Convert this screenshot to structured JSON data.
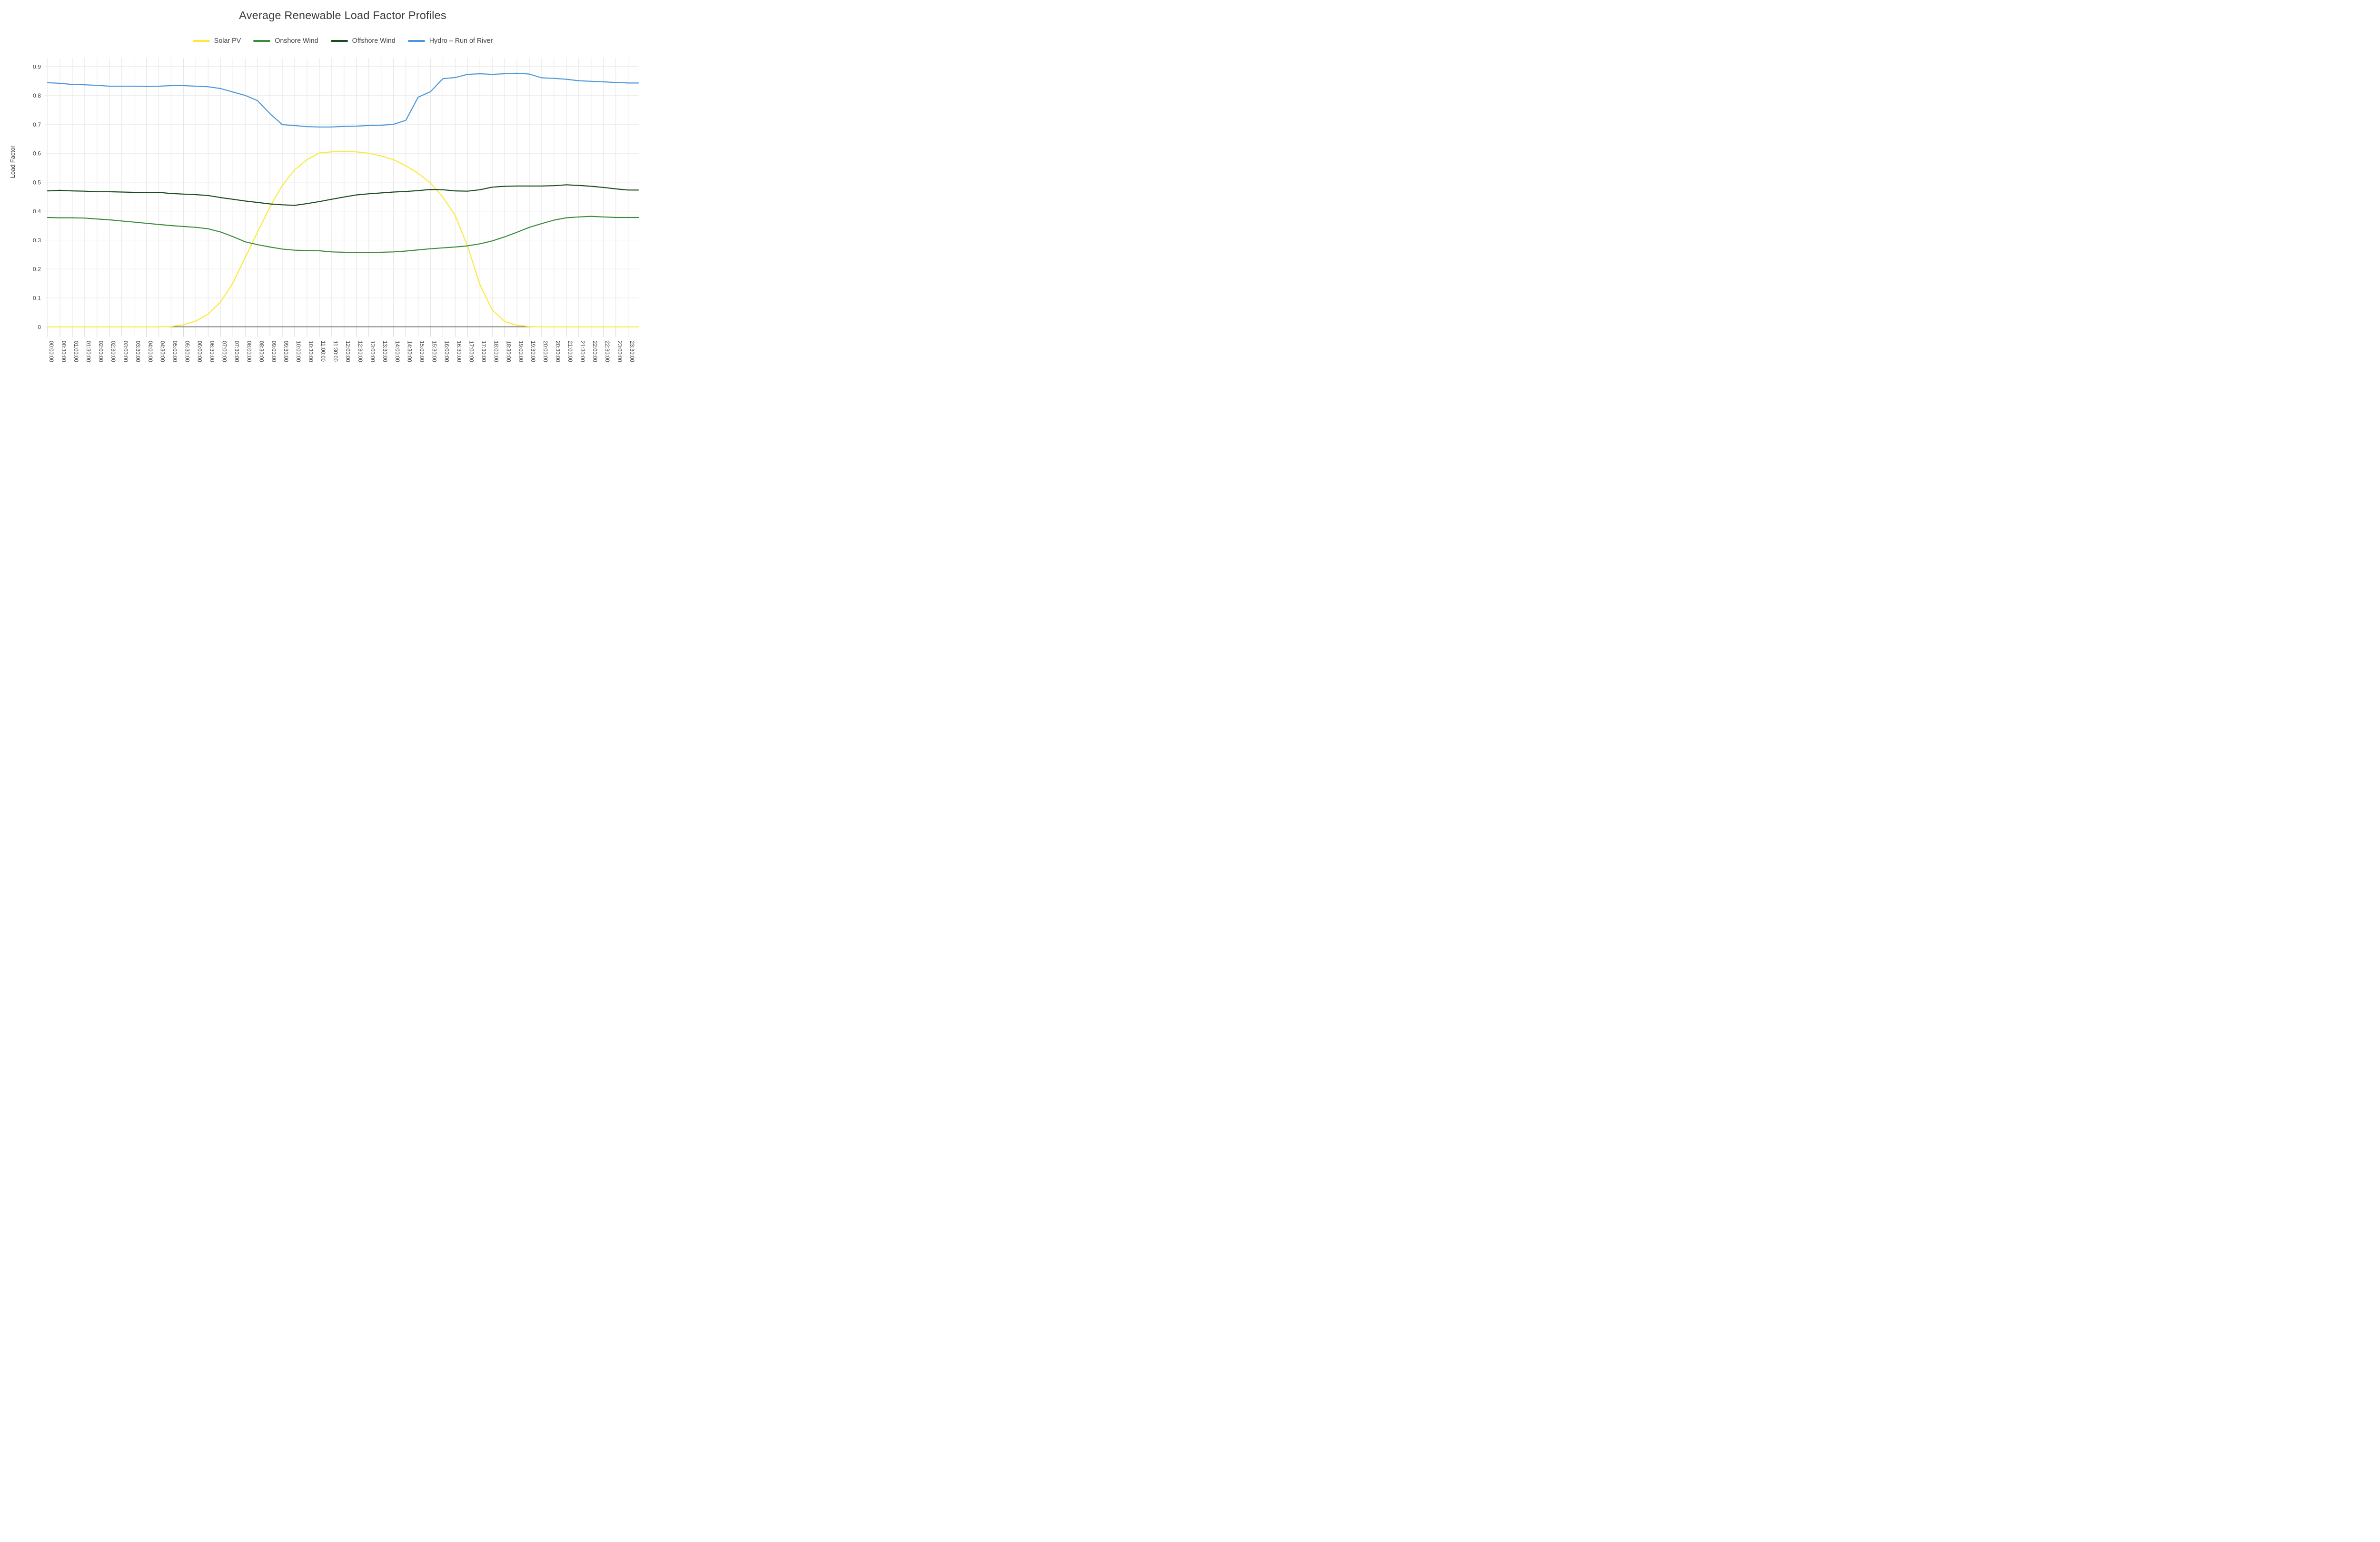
{
  "title": "Average Renewable Load Factor Profiles",
  "y_axis_title": "Load Factor",
  "chart_data": {
    "type": "line",
    "title": "Average Renewable Load Factor Profiles",
    "xlabel": "",
    "ylabel": "Load Factor",
    "legend_position": "top",
    "grid": true,
    "ylim": [
      0,
      0.93
    ],
    "y_ticks": [
      {
        "value": 0.0,
        "label": "0"
      },
      {
        "value": 0.1,
        "label": "0.1"
      },
      {
        "value": 0.2,
        "label": "0.2"
      },
      {
        "value": 0.3,
        "label": "0.3"
      },
      {
        "value": 0.4,
        "label": "0.4"
      },
      {
        "value": 0.5,
        "label": "0.5"
      },
      {
        "value": 0.6,
        "label": "0.6"
      },
      {
        "value": 0.7,
        "label": "0.7"
      },
      {
        "value": 0.8,
        "label": "0.8"
      },
      {
        "value": 0.9,
        "label": "0.9"
      }
    ],
    "categories": [
      "00:00:00",
      "00:30:00",
      "01:00:00",
      "01:30:00",
      "02:00:00",
      "02:30:00",
      "03:00:00",
      "03:30:00",
      "04:00:00",
      "04:30:00",
      "05:00:00",
      "05:30:00",
      "06:00:00",
      "06:30:00",
      "07:00:00",
      "07:30:00",
      "08:00:00",
      "08:30:00",
      "09:00:00",
      "09:30:00",
      "10:00:00",
      "10:30:00",
      "11:00:00",
      "11:30:00",
      "12:00:00",
      "12:30:00",
      "13:00:00",
      "13:30:00",
      "14:00:00",
      "14:30:00",
      "15:00:00",
      "15:30:00",
      "16:00:00",
      "16:30:00",
      "17:00:00",
      "17:30:00",
      "18:00:00",
      "18:30:00",
      "19:00:00",
      "19:30:00",
      "20:00:00",
      "20:30:00",
      "21:00:00",
      "21:30:00",
      "22:00:00",
      "22:30:00",
      "23:00:00",
      "23:30:00"
    ],
    "overhang_intervals": 0.83,
    "series": [
      {
        "name": "Solar PV",
        "color": "#FBEA3C",
        "values": [
          0,
          0,
          0,
          0,
          0,
          0,
          0,
          0,
          0,
          0,
          0.001,
          0.007,
          0.02,
          0.044,
          0.086,
          0.151,
          0.24,
          0.328,
          0.414,
          0.489,
          0.543,
          0.578,
          0.601,
          0.605,
          0.607,
          0.605,
          0.6,
          0.591,
          0.578,
          0.557,
          0.531,
          0.497,
          0.448,
          0.385,
          0.279,
          0.146,
          0.058,
          0.019,
          0.005,
          0.001,
          0,
          0,
          0,
          0,
          0,
          0,
          0,
          0
        ]
      },
      {
        "name": "Onshore Wind",
        "color": "#3C8C40",
        "values": [
          0.378,
          0.377,
          0.377,
          0.376,
          0.373,
          0.37,
          0.366,
          0.362,
          0.358,
          0.354,
          0.35,
          0.347,
          0.344,
          0.339,
          0.328,
          0.312,
          0.294,
          0.284,
          0.276,
          0.269,
          0.265,
          0.264,
          0.263,
          0.259,
          0.258,
          0.257,
          0.257,
          0.258,
          0.259,
          0.262,
          0.266,
          0.27,
          0.273,
          0.276,
          0.28,
          0.287,
          0.297,
          0.311,
          0.327,
          0.344,
          0.357,
          0.369,
          0.377,
          0.38,
          0.382,
          0.38,
          0.378,
          0.378
        ]
      },
      {
        "name": "Offshore Wind",
        "color": "#1C4B1E",
        "values": [
          0.47,
          0.472,
          0.47,
          0.469,
          0.467,
          0.467,
          0.466,
          0.465,
          0.464,
          0.465,
          0.461,
          0.459,
          0.457,
          0.454,
          0.447,
          0.441,
          0.435,
          0.43,
          0.425,
          0.422,
          0.42,
          0.426,
          0.433,
          0.441,
          0.449,
          0.456,
          0.46,
          0.463,
          0.466,
          0.468,
          0.471,
          0.475,
          0.474,
          0.47,
          0.469,
          0.474,
          0.483,
          0.486,
          0.487,
          0.487,
          0.487,
          0.488,
          0.491,
          0.489,
          0.486,
          0.482,
          0.477,
          0.473
        ]
      },
      {
        "name": "Hydro - Run of River",
        "color": "#4D97D9",
        "values": [
          0.844,
          0.842,
          0.838,
          0.837,
          0.835,
          0.832,
          0.832,
          0.832,
          0.831,
          0.832,
          0.834,
          0.834,
          0.832,
          0.83,
          0.824,
          0.812,
          0.8,
          0.782,
          0.737,
          0.699,
          0.696,
          0.692,
          0.691,
          0.691,
          0.693,
          0.694,
          0.696,
          0.697,
          0.7,
          0.714,
          0.794,
          0.813,
          0.858,
          0.862,
          0.873,
          0.875,
          0.873,
          0.875,
          0.877,
          0.874,
          0.861,
          0.859,
          0.856,
          0.851,
          0.849,
          0.847,
          0.845,
          0.843
        ]
      }
    ],
    "colors": {
      "grid_horizontal": "#ececec",
      "grid_vertical": "#e8e8e8",
      "tick_mark": "#dcdcdc",
      "axis_line": "#3f3f3f",
      "tick_label": "#444444",
      "title_text": "#3a3a3a"
    }
  }
}
